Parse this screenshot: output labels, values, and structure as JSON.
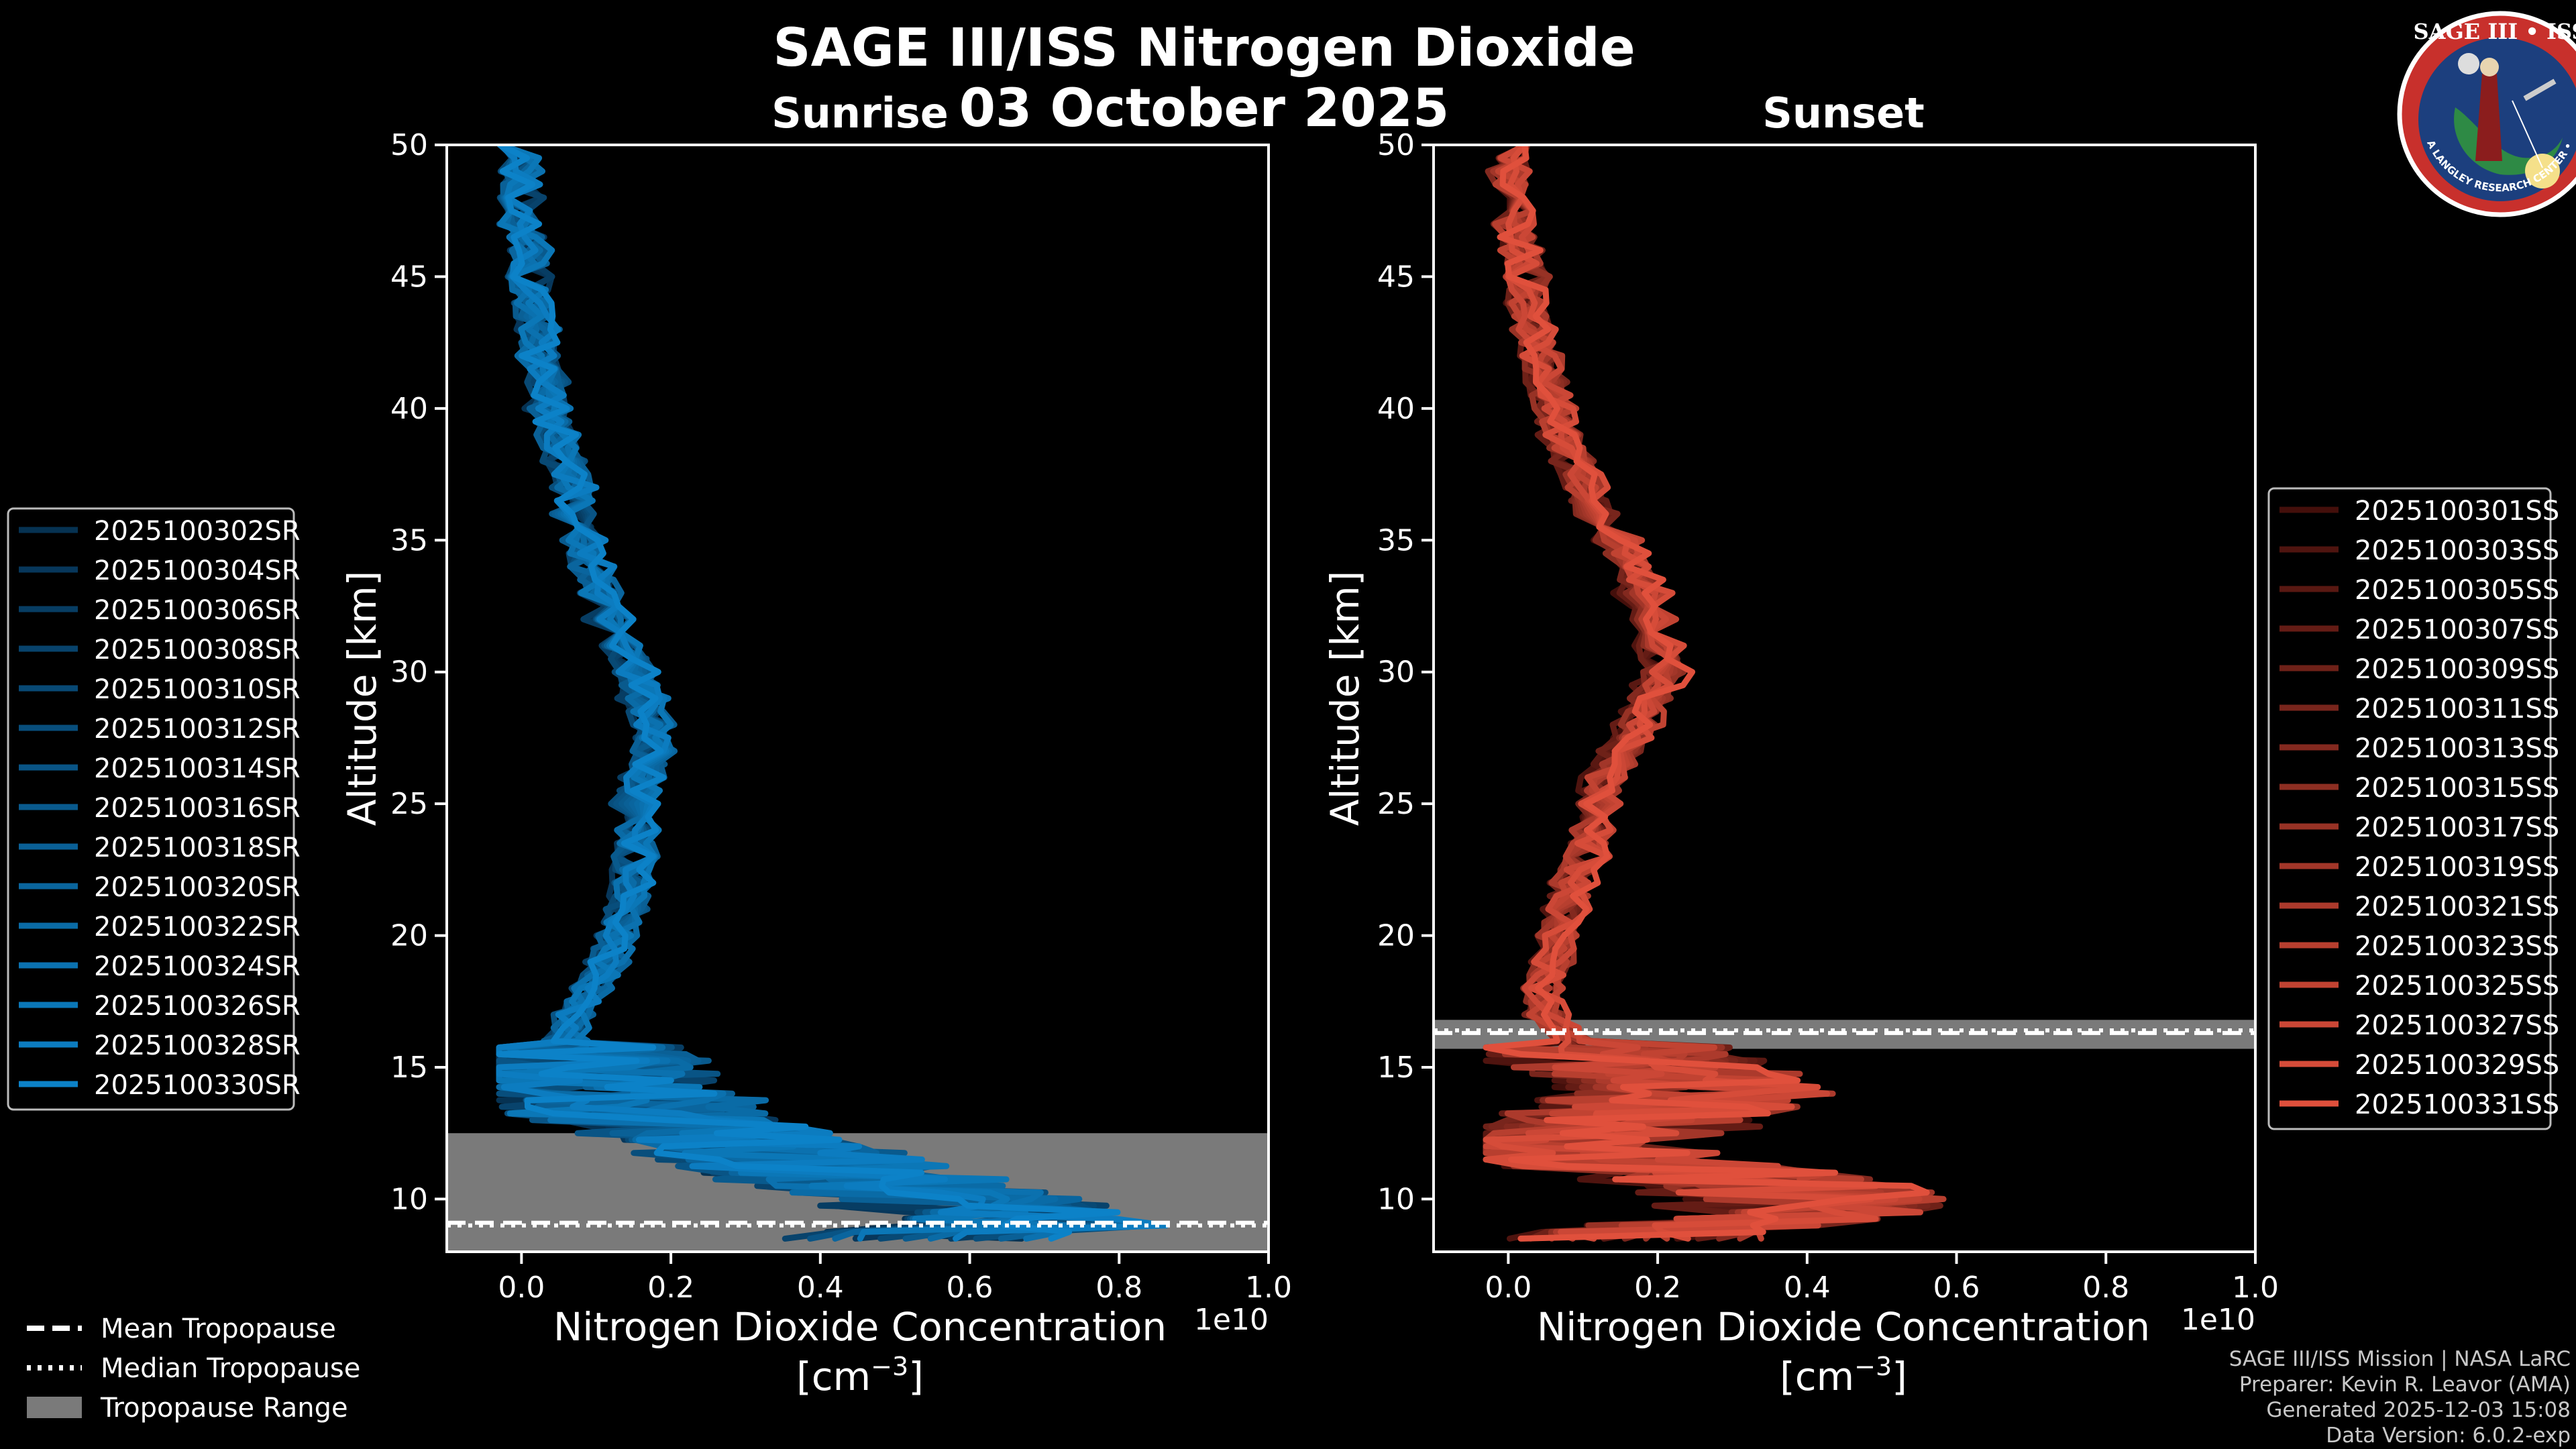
{
  "figure": {
    "title": "SAGE III/ISS Nitrogen Dioxide",
    "date": "03 October 2025",
    "logo": {
      "top_text": "SAGE III • ISS",
      "ring_text": "BALL • NASA LANGLEY RESEARCH CENTER • TAS-I • ESA"
    },
    "legend_common": [
      {
        "style": "dashed",
        "label": "Mean Tropopause"
      },
      {
        "style": "dotted",
        "label": "Median Tropopause"
      },
      {
        "style": "patch",
        "label": "Tropopause Range"
      }
    ],
    "footer": [
      "SAGE III/ISS Mission | NASA LaRC",
      "Preparer: Kevin R. Leavor (AMA)",
      "Generated 2025-12-03 15:08",
      "Data Version: 6.0.2-exp"
    ],
    "colors": {
      "background": "#000000",
      "sunrise_base": "#0c82c8",
      "sunset_base": "#e0503c",
      "tropopause_range": "#7a7a7a"
    }
  },
  "chart_data": [
    {
      "type": "line",
      "title": "Sunrise",
      "xlabel": "Nitrogen Dioxide Concentration",
      "xunit": "[cm$^{-3}$]",
      "ylabel": "Altitude [km]",
      "x_scale_label": "1e10",
      "xlim": [
        -0.1,
        1.0
      ],
      "ylim": [
        8,
        50
      ],
      "xticks": [
        "0.0",
        "0.2",
        "0.4",
        "0.6",
        "0.8",
        "1.0"
      ],
      "yticks": [
        "10",
        "15",
        "20",
        "25",
        "30",
        "35",
        "40",
        "45",
        "50"
      ],
      "tropopause_range_km": [
        8.0,
        12.5
      ],
      "mean_tropopause_km": 9.1,
      "median_tropopause_km": 9.0,
      "series_names": [
        "2025100302SR",
        "2025100304SR",
        "2025100306SR",
        "2025100308SR",
        "2025100310SR",
        "2025100312SR",
        "2025100314SR",
        "2025100316SR",
        "2025100318SR",
        "2025100320SR",
        "2025100322SR",
        "2025100324SR",
        "2025100326SR",
        "2025100328SR",
        "2025100330SR"
      ],
      "profile_altitudes_km": [
        8.5,
        9,
        9.5,
        10,
        10.5,
        11,
        11.5,
        12,
        12.5,
        13,
        13.5,
        14,
        14.5,
        15,
        15.5,
        16,
        17,
        18,
        19,
        20,
        21,
        22,
        23,
        24,
        25,
        26,
        27,
        28,
        29,
        30,
        31,
        32,
        33,
        34,
        35,
        36,
        37,
        38,
        39,
        40,
        41,
        42,
        43,
        44,
        45,
        46,
        47,
        48,
        49,
        50
      ],
      "typical_profile_1e10cm3": [
        0.45,
        0.6,
        0.55,
        0.5,
        0.42,
        0.35,
        0.3,
        0.25,
        0.2,
        0.15,
        0.12,
        0.1,
        0.08,
        0.06,
        0.05,
        0.05,
        0.06,
        0.08,
        0.1,
        0.11,
        0.12,
        0.13,
        0.13,
        0.13,
        0.13,
        0.14,
        0.15,
        0.15,
        0.14,
        0.13,
        0.12,
        0.1,
        0.09,
        0.08,
        0.07,
        0.06,
        0.06,
        0.05,
        0.04,
        0.03,
        0.03,
        0.02,
        0.02,
        0.01,
        0.01,
        0.01,
        0.0,
        0.0,
        0.0,
        0.0
      ]
    },
    {
      "type": "line",
      "title": "Sunset",
      "xlabel": "Nitrogen Dioxide Concentration",
      "xunit": "[cm$^{-3}$]",
      "ylabel": "Altitude [km]",
      "x_scale_label": "1e10",
      "xlim": [
        -0.1,
        1.0
      ],
      "ylim": [
        8,
        50
      ],
      "xticks": [
        "0.0",
        "0.2",
        "0.4",
        "0.6",
        "0.8",
        "1.0"
      ],
      "yticks": [
        "10",
        "15",
        "20",
        "25",
        "30",
        "35",
        "40",
        "45",
        "50"
      ],
      "tropopause_range_km": [
        15.7,
        16.8
      ],
      "mean_tropopause_km": 16.3,
      "median_tropopause_km": 16.4,
      "series_names": [
        "2025100301SS",
        "2025100303SS",
        "2025100305SS",
        "2025100307SS",
        "2025100309SS",
        "2025100311SS",
        "2025100313SS",
        "2025100315SS",
        "2025100317SS",
        "2025100319SS",
        "2025100321SS",
        "2025100323SS",
        "2025100325SS",
        "2025100327SS",
        "2025100329SS",
        "2025100331SS"
      ],
      "profile_altitudes_km": [
        8.5,
        9,
        9.5,
        10,
        10.5,
        11,
        11.5,
        12,
        12.5,
        13,
        13.5,
        14,
        14.5,
        15,
        15.5,
        16,
        17,
        18,
        19,
        20,
        21,
        22,
        23,
        24,
        25,
        26,
        27,
        28,
        29,
        30,
        31,
        32,
        33,
        34,
        35,
        36,
        37,
        38,
        39,
        40,
        41,
        42,
        43,
        44,
        45,
        46,
        47,
        48,
        49,
        50
      ],
      "typical_profile_1e10cm3": [
        0.2,
        0.3,
        0.45,
        0.5,
        0.4,
        0.3,
        0.1,
        0.08,
        0.15,
        0.2,
        0.25,
        0.3,
        0.25,
        0.2,
        0.15,
        0.1,
        0.06,
        0.05,
        0.07,
        0.08,
        0.09,
        0.1,
        0.12,
        0.13,
        0.14,
        0.15,
        0.18,
        0.2,
        0.22,
        0.24,
        0.24,
        0.23,
        0.21,
        0.19,
        0.17,
        0.14,
        0.12,
        0.1,
        0.08,
        0.07,
        0.06,
        0.05,
        0.04,
        0.03,
        0.03,
        0.02,
        0.01,
        0.01,
        0.0,
        0.0
      ]
    }
  ]
}
